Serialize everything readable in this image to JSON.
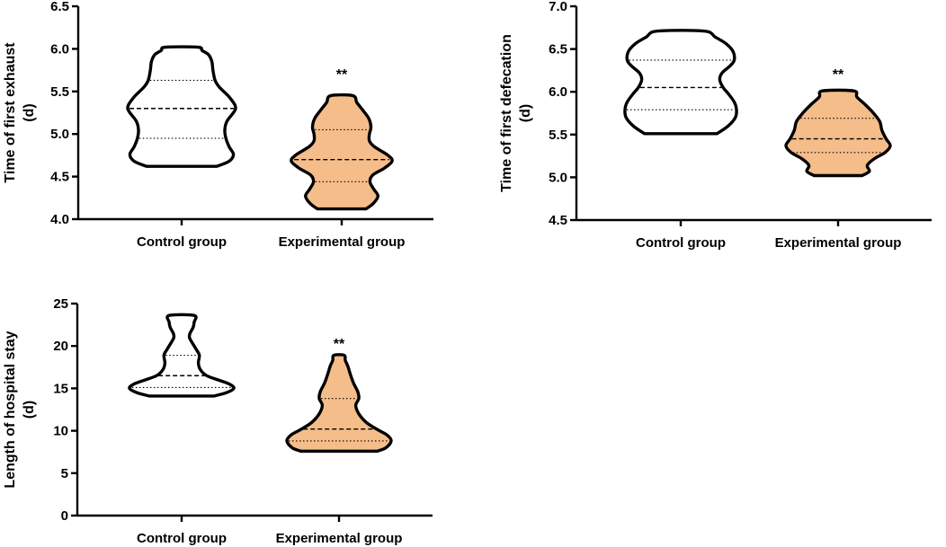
{
  "colors": {
    "control_fill": "#ffffff",
    "experimental_fill": "#f4bd8a",
    "outline": "#000000"
  },
  "chart_data": [
    {
      "type": "violin",
      "ylabel_line1": "Time of first exhaust",
      "ylabel_line2": "(d)",
      "ylim": [
        4.0,
        6.5
      ],
      "yticks": [
        "4.0",
        "4.5",
        "5.0",
        "5.5",
        "6.0",
        "6.5"
      ],
      "categories": [
        "Control group",
        "Experimental group"
      ],
      "significance": [
        "",
        "**"
      ],
      "groups": [
        {
          "name": "Control group",
          "min": 4.62,
          "q1": 4.95,
          "median": 5.3,
          "q3": 5.63,
          "max": 6.02,
          "profile": [
            [
              4.62,
              0.65
            ],
            [
              4.68,
              0.88
            ],
            [
              4.76,
              0.96
            ],
            [
              4.85,
              0.88
            ],
            [
              4.95,
              0.82
            ],
            [
              5.05,
              0.8
            ],
            [
              5.15,
              0.84
            ],
            [
              5.25,
              0.96
            ],
            [
              5.3,
              1.0
            ],
            [
              5.35,
              0.98
            ],
            [
              5.45,
              0.86
            ],
            [
              5.55,
              0.7
            ],
            [
              5.63,
              0.62
            ],
            [
              5.75,
              0.58
            ],
            [
              5.85,
              0.56
            ],
            [
              5.93,
              0.5
            ],
            [
              5.98,
              0.38
            ],
            [
              6.02,
              0.3
            ]
          ]
        },
        {
          "name": "Experimental group",
          "min": 4.12,
          "q1": 4.44,
          "median": 4.7,
          "q3": 5.05,
          "max": 5.45,
          "profile": [
            [
              4.12,
              0.48
            ],
            [
              4.18,
              0.62
            ],
            [
              4.27,
              0.72
            ],
            [
              4.35,
              0.64
            ],
            [
              4.44,
              0.56
            ],
            [
              4.52,
              0.62
            ],
            [
              4.6,
              0.85
            ],
            [
              4.68,
              1.0
            ],
            [
              4.75,
              0.92
            ],
            [
              4.85,
              0.65
            ],
            [
              4.92,
              0.55
            ],
            [
              5.0,
              0.55
            ],
            [
              5.08,
              0.58
            ],
            [
              5.18,
              0.54
            ],
            [
              5.28,
              0.42
            ],
            [
              5.37,
              0.3
            ],
            [
              5.45,
              0.22
            ]
          ]
        }
      ]
    },
    {
      "type": "violin",
      "ylabel_line1": "Time of first defecation",
      "ylabel_line2": "(d)",
      "ylim": [
        4.5,
        7.0
      ],
      "yticks": [
        "4.5",
        "5.0",
        "5.5",
        "6.0",
        "6.5",
        "7.0"
      ],
      "categories": [
        "Control group",
        "Experimental group"
      ],
      "significance": [
        "",
        "**"
      ],
      "groups": [
        {
          "name": "Control group",
          "min": 5.51,
          "q1": 5.79,
          "median": 6.05,
          "q3": 6.37,
          "max": 6.71,
          "profile": [
            [
              5.51,
              0.65
            ],
            [
              5.6,
              0.85
            ],
            [
              5.7,
              0.98
            ],
            [
              5.79,
              1.0
            ],
            [
              5.88,
              0.96
            ],
            [
              5.98,
              0.85
            ],
            [
              6.05,
              0.76
            ],
            [
              6.14,
              0.7
            ],
            [
              6.22,
              0.74
            ],
            [
              6.3,
              0.88
            ],
            [
              6.37,
              0.96
            ],
            [
              6.47,
              0.94
            ],
            [
              6.56,
              0.82
            ],
            [
              6.64,
              0.62
            ],
            [
              6.71,
              0.42
            ]
          ]
        },
        {
          "name": "Experimental group",
          "min": 5.02,
          "q1": 5.29,
          "median": 5.45,
          "q3": 5.69,
          "max": 6.01,
          "profile": [
            [
              5.02,
              0.46
            ],
            [
              5.07,
              0.6
            ],
            [
              5.14,
              0.56
            ],
            [
              5.22,
              0.7
            ],
            [
              5.29,
              0.9
            ],
            [
              5.37,
              1.0
            ],
            [
              5.45,
              0.92
            ],
            [
              5.55,
              0.84
            ],
            [
              5.65,
              0.8
            ],
            [
              5.75,
              0.68
            ],
            [
              5.85,
              0.52
            ],
            [
              5.94,
              0.36
            ],
            [
              6.01,
              0.3
            ]
          ]
        }
      ]
    },
    {
      "type": "violin",
      "ylabel_line1": "Length of hospital stay",
      "ylabel_line2": "(d)",
      "ylim": [
        0,
        25
      ],
      "yticks": [
        "0",
        "5",
        "10",
        "15",
        "20",
        "25"
      ],
      "categories": [
        "Control group",
        "Experimental group"
      ],
      "significance": [
        "",
        "**"
      ],
      "groups": [
        {
          "name": "Control group",
          "min": 14.1,
          "q1": 15.1,
          "median": 16.5,
          "q3": 18.9,
          "max": 23.6,
          "profile": [
            [
              14.1,
              0.62
            ],
            [
              14.5,
              0.86
            ],
            [
              15.0,
              1.0
            ],
            [
              15.5,
              0.92
            ],
            [
              16.0,
              0.7
            ],
            [
              16.5,
              0.48
            ],
            [
              17.2,
              0.36
            ],
            [
              18.0,
              0.32
            ],
            [
              18.9,
              0.34
            ],
            [
              19.6,
              0.28
            ],
            [
              20.4,
              0.2
            ],
            [
              21.0,
              0.15
            ],
            [
              21.5,
              0.16
            ],
            [
              22.2,
              0.22
            ],
            [
              22.8,
              0.24
            ],
            [
              23.6,
              0.24
            ]
          ]
        },
        {
          "name": "Experimental group",
          "min": 7.6,
          "q1": 8.8,
          "median": 10.2,
          "q3": 13.8,
          "max": 18.9,
          "profile": [
            [
              7.6,
              0.74
            ],
            [
              8.0,
              0.9
            ],
            [
              8.8,
              1.0
            ],
            [
              9.5,
              0.92
            ],
            [
              10.2,
              0.72
            ],
            [
              11.0,
              0.52
            ],
            [
              12.0,
              0.38
            ],
            [
              13.0,
              0.32
            ],
            [
              13.8,
              0.38
            ],
            [
              14.6,
              0.36
            ],
            [
              15.6,
              0.28
            ],
            [
              16.6,
              0.22
            ],
            [
              17.6,
              0.17
            ],
            [
              18.3,
              0.12
            ],
            [
              18.9,
              0.1
            ]
          ]
        }
      ]
    }
  ]
}
